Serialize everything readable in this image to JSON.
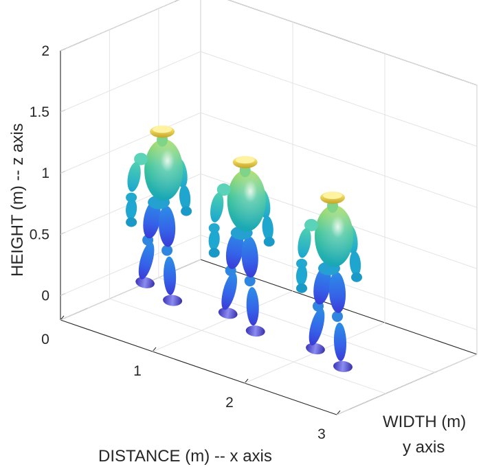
{
  "chart_data": {
    "type": "3d-surface",
    "title": "",
    "xlabel": "DISTANCE (m) -- x axis",
    "ylabel_lines": [
      "WIDTH (m)",
      "y axis"
    ],
    "zlabel": "HEIGHT (m) -- z axis",
    "x_ticks": [
      "0",
      "1",
      "2",
      "3"
    ],
    "z_ticks": [
      "0",
      "0.5",
      "1",
      "1.5",
      "2"
    ],
    "zlim": [
      -0.2,
      2.0
    ],
    "grid": true,
    "box": true,
    "colormap": "parula",
    "series": [
      {
        "x": 0.55,
        "z_top": 1.33
      },
      {
        "x": 1.45,
        "z_top": 1.17
      },
      {
        "x": 2.4,
        "z_top": 0.97
      }
    ]
  }
}
